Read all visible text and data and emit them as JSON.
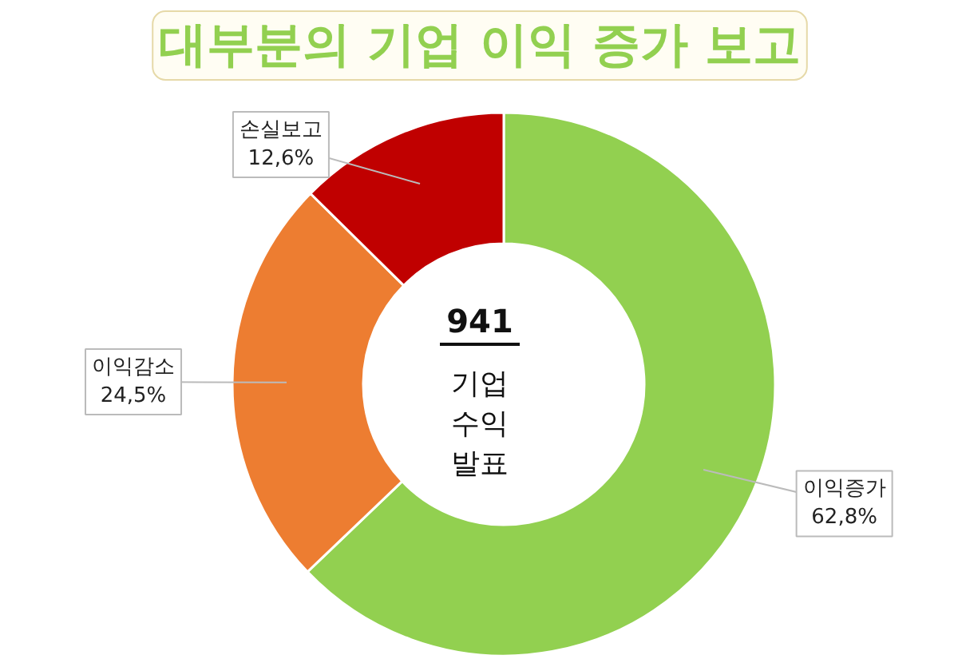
{
  "chart_data": {
    "type": "donut",
    "title": "대부분의 기업 이익 증가 보고",
    "categories": [
      "이익증가",
      "이익감소",
      "손실보고"
    ],
    "values": [
      62.8,
      24.5,
      12.6
    ],
    "value_labels": [
      "62,8%",
      "24,5%",
      "12,6%"
    ],
    "colors": [
      "#92d050",
      "#ed7d31",
      "#c00000"
    ],
    "annotations": [
      "941",
      "기업\n수익\n발표"
    ]
  }
}
